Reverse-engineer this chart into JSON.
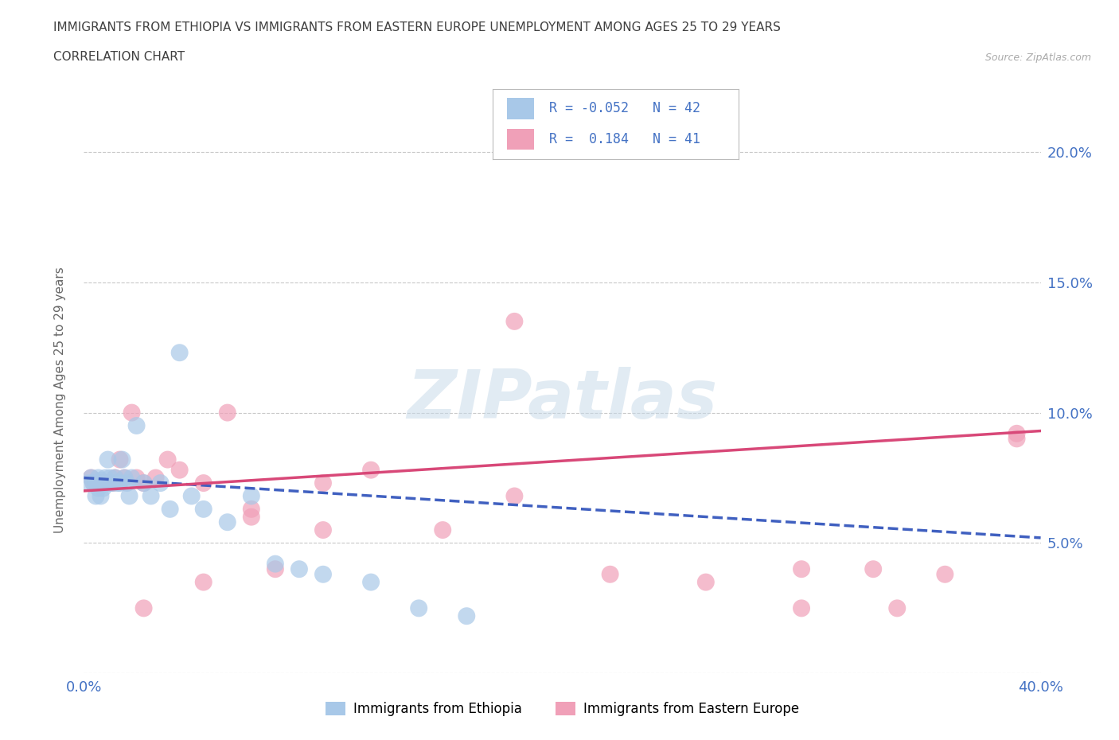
{
  "title_line1": "IMMIGRANTS FROM ETHIOPIA VS IMMIGRANTS FROM EASTERN EUROPE UNEMPLOYMENT AMONG AGES 25 TO 29 YEARS",
  "title_line2": "CORRELATION CHART",
  "source_text": "Source: ZipAtlas.com",
  "ylabel": "Unemployment Among Ages 25 to 29 years",
  "xlim": [
    0.0,
    0.4
  ],
  "ylim": [
    0.0,
    0.21
  ],
  "grid_color": "#c8c8c8",
  "background_color": "#ffffff",
  "blue_scatter_color": "#a8c8e8",
  "pink_scatter_color": "#f0a0b8",
  "blue_line_color": "#4060c0",
  "pink_line_color": "#d84878",
  "axis_label_color": "#4472c4",
  "title_color": "#404040",
  "source_color": "#aaaaaa",
  "legend_r1": "-0.052",
  "legend_n1": "42",
  "legend_r2": "0.184",
  "legend_n2": "41",
  "ethiopia_x": [
    0.002,
    0.003,
    0.004,
    0.005,
    0.005,
    0.006,
    0.006,
    0.007,
    0.007,
    0.008,
    0.008,
    0.009,
    0.009,
    0.01,
    0.01,
    0.011,
    0.011,
    0.012,
    0.013,
    0.014,
    0.015,
    0.016,
    0.017,
    0.018,
    0.019,
    0.02,
    0.022,
    0.025,
    0.028,
    0.032,
    0.036,
    0.04,
    0.045,
    0.05,
    0.06,
    0.07,
    0.08,
    0.09,
    0.1,
    0.12,
    0.14,
    0.16
  ],
  "ethiopia_y": [
    0.073,
    0.075,
    0.073,
    0.073,
    0.068,
    0.075,
    0.071,
    0.074,
    0.068,
    0.073,
    0.071,
    0.075,
    0.073,
    0.073,
    0.082,
    0.075,
    0.073,
    0.073,
    0.075,
    0.073,
    0.073,
    0.082,
    0.075,
    0.073,
    0.068,
    0.075,
    0.095,
    0.073,
    0.068,
    0.073,
    0.063,
    0.123,
    0.068,
    0.063,
    0.058,
    0.068,
    0.042,
    0.04,
    0.038,
    0.035,
    0.025,
    0.022
  ],
  "eastern_europe_x": [
    0.003,
    0.004,
    0.005,
    0.006,
    0.007,
    0.008,
    0.009,
    0.01,
    0.011,
    0.012,
    0.013,
    0.015,
    0.017,
    0.02,
    0.022,
    0.025,
    0.03,
    0.035,
    0.04,
    0.05,
    0.06,
    0.07,
    0.08,
    0.1,
    0.12,
    0.15,
    0.18,
    0.22,
    0.26,
    0.3,
    0.33,
    0.36,
    0.39,
    0.39,
    0.025,
    0.05,
    0.07,
    0.1,
    0.18,
    0.3,
    0.34
  ],
  "eastern_europe_y": [
    0.075,
    0.073,
    0.073,
    0.073,
    0.073,
    0.073,
    0.073,
    0.073,
    0.073,
    0.073,
    0.075,
    0.082,
    0.075,
    0.1,
    0.075,
    0.073,
    0.075,
    0.082,
    0.078,
    0.073,
    0.1,
    0.063,
    0.04,
    0.073,
    0.078,
    0.055,
    0.068,
    0.038,
    0.035,
    0.04,
    0.04,
    0.038,
    0.09,
    0.092,
    0.025,
    0.035,
    0.06,
    0.055,
    0.135,
    0.025,
    0.025
  ]
}
